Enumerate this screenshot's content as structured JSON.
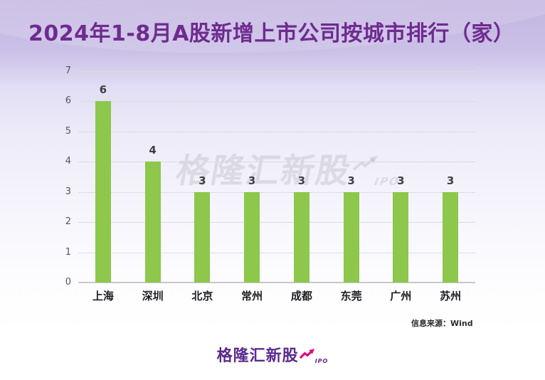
{
  "title": "2024年1-8月A股新增上市公司按城市排行（家）",
  "source_label": "信息来源：Wind",
  "watermark": {
    "text": "格隆汇新股",
    "sub": "IPO"
  },
  "logo": {
    "text": "格隆汇新股",
    "sub": "IPO"
  },
  "colors": {
    "title_purple": "#6f2b8f",
    "bar_green": "#8dc74b",
    "logo_purple": "#5b2b8e",
    "arrow_pink": "#e5007d",
    "gridline": "#dcdce3",
    "axis_line": "#c7c7cd",
    "tick_text": "#55555e",
    "value_text": "#3f3f46"
  },
  "chart_data": {
    "type": "bar",
    "title": "2024年1-8月A股新增上市公司按城市排行（家）",
    "categories": [
      "上海",
      "深圳",
      "北京",
      "常州",
      "成都",
      "东莞",
      "广州",
      "苏州"
    ],
    "values": [
      6,
      4,
      3,
      3,
      3,
      3,
      3,
      3
    ],
    "xlabel": "",
    "ylabel": "",
    "ylim": [
      0,
      7
    ],
    "yticks": [
      0,
      1,
      2,
      3,
      4,
      5,
      6,
      7
    ],
    "grid": true,
    "data_labels": true,
    "legend_position": "none",
    "source": "信息来源：Wind"
  }
}
